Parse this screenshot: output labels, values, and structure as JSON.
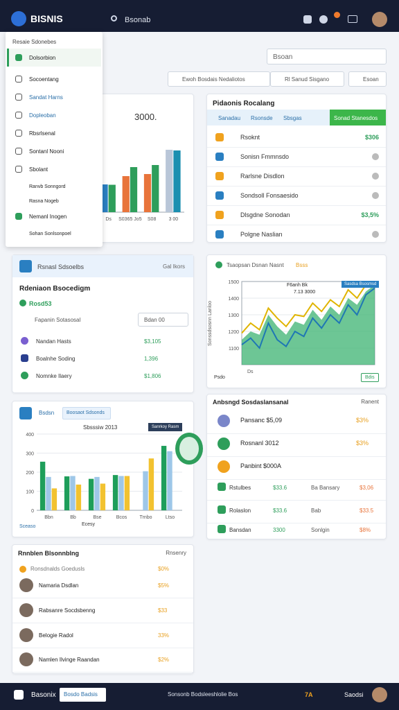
{
  "topbar": {
    "brand": "BISNIS",
    "search": "Bsonab"
  },
  "menu": {
    "heading": "Resaie Sdonebes",
    "items": [
      "Dolsorbion",
      "Socoentang",
      "Sandat Harns",
      "Dopleoban",
      "Rbsrlsenal",
      "Sontanl Nooni",
      "Sbolant",
      "Ranvb Sonngord",
      "Rasna Nogeb",
      "Nemanl Inogen",
      "Sohan Sonlsonpoel"
    ]
  },
  "toolbar": {
    "search": "Bsoan",
    "buttons": [
      "Ewoh Bosdais Nedaliotos",
      "Rl Sanud Sisgano",
      "Esoan"
    ]
  },
  "products": {
    "title": "Pidaonis Rocalang",
    "tabs": [
      "Sanadau",
      "Rsonsde",
      "Sbsgas",
      "Sonad Stanesdos"
    ],
    "rows": [
      {
        "label": "Rsoknt",
        "value": "$306"
      },
      {
        "label": "Sonisn Fmmnsdo"
      },
      {
        "label": "Rarlsne Disdlon"
      },
      {
        "label": "Sondsoll Fonsaesido"
      },
      {
        "label": "Dlsgdne Sonodan",
        "value": "$3,5%"
      },
      {
        "label": "Polgne Naslian"
      }
    ]
  },
  "sales": {
    "badge": "Rsnasl Sdsoelbs",
    "link": "Gal Ikors",
    "title": "Rdeniaon Bsocedigm",
    "stat": "Rosd53",
    "filter": "Fapanin Sotasosal",
    "select": "Bdan 00",
    "rows": [
      {
        "label": "Nandan Hasts",
        "value": "$3,105"
      },
      {
        "label": "Boalnhe Soding",
        "value": "1,396"
      },
      {
        "label": "Nomnke Ilaery",
        "value": "$1,806"
      }
    ]
  },
  "activity": {
    "title": "Anbsngd Sosdaslansanal",
    "link": "Ranent",
    "rows": [
      [
        "Pansanc $5,09",
        "$3%"
      ],
      [
        "Rosnanl 3012",
        "$3%"
      ],
      [
        "Panbint $000A"
      ],
      [
        "Rstulbes",
        "$33.6",
        "Ba Bansary",
        "$3,06"
      ],
      [
        "Rolaslon",
        "$33.6",
        "Bab",
        "$33.5"
      ],
      [
        "Bansdan",
        "3300",
        "Sonlgin",
        "$8%"
      ]
    ]
  },
  "team": {
    "title": "Rnnblen Blsonnblng",
    "link": "Rnsenry",
    "rows": [
      {
        "name": "Ronsdnalds Goedusls",
        "value": "$0%"
      },
      {
        "name": "Namaria Dsdlan",
        "value": "$5%"
      },
      {
        "name": "Rabsanre Socdsbenng",
        "value": "$33"
      },
      {
        "name": "Belogie Radol",
        "value": "33%"
      },
      {
        "name": "Namlen Ilvinge Raandan",
        "value": "$2%"
      }
    ]
  },
  "bottombar": {
    "brand": "Basonix",
    "button": "Bosdo Badsis",
    "center": "Sonsonb Bodsleeshlolie Bos",
    "tag": "7A",
    "user": "Saodsi"
  },
  "chart_data": [
    {
      "type": "bar",
      "label": "3000.",
      "categories": [
        "Ds",
        "S0365 Jo5",
        "S08",
        "3 00"
      ],
      "ylim": [
        0,
        3000
      ],
      "series": [
        {
          "colors": [
            "#2a7fc1",
            "#e8743b",
            "#e8743b",
            "#b9c6d8"
          ],
          "values": [
            800,
            1040,
            1100,
            1800
          ]
        },
        {
          "colors": [
            "#2e9e5b",
            "#2e9e5b",
            "#2e9e5b",
            "#1b8fb0"
          ],
          "values": [
            790,
            1300,
            1360,
            1780
          ]
        }
      ]
    },
    {
      "type": "area",
      "title": "Tsaopsan Dsnan Nasnt",
      "highlight": "Bsss",
      "ylabel": "Sonssdsosnn Lanloo",
      "xlabel": "Psdo",
      "tag": "Sasdsa Bsosmsd",
      "annotation": [
        "F6anh Bk",
        "7.13 3000"
      ],
      "button": "Bdis",
      "categories": [
        "Ds",
        null,
        null,
        null,
        null,
        null,
        null,
        null,
        null,
        null,
        null,
        null,
        null,
        null,
        null,
        null
      ],
      "ylim": [
        1000,
        1500
      ],
      "yticks": [
        1100,
        1200,
        1300,
        1400,
        1500
      ],
      "grid": true,
      "series": [
        {
          "color": "#3cb371",
          "fill": true,
          "values": [
            1150,
            1200,
            1180,
            1300,
            1230,
            1180,
            1260,
            1240,
            1330,
            1270,
            1350,
            1300,
            1400,
            1360,
            1440,
            1480
          ]
        },
        {
          "color": "#e0b400",
          "values": [
            1190,
            1250,
            1210,
            1340,
            1280,
            1230,
            1300,
            1290,
            1370,
            1320,
            1390,
            1350,
            1450,
            1400,
            1480,
            1490
          ]
        },
        {
          "color": "#1f77b4",
          "values": [
            1120,
            1160,
            1100,
            1250,
            1150,
            1110,
            1200,
            1170,
            1280,
            1220,
            1300,
            1250,
            1360,
            1300,
            1420,
            1460
          ]
        }
      ]
    },
    {
      "type": "bar",
      "header": "Bsdsn",
      "button": "Boosaot Sdsonds",
      "title": "Sbsssiw 2013",
      "annotation": "Sanrkoy Rasm",
      "caption": "Sceaso",
      "xlabel": "Ecesy",
      "categories": [
        "Bbn",
        "Bb",
        "Bse",
        "Bcos",
        "Trnbo",
        "Ltso"
      ],
      "ylim": [
        0,
        400
      ],
      "yticks": [
        0,
        100,
        200,
        300,
        400
      ],
      "grid": true,
      "series": [
        {
          "color": "#1e9e5a",
          "values": [
            255,
            178,
            165,
            185,
            null,
            338
          ]
        },
        {
          "color": "#9ec7e8",
          "values": [
            175,
            180,
            175,
            180,
            205,
            310
          ]
        },
        {
          "color": "#f2c230",
          "values": [
            115,
            135,
            140,
            180,
            272,
            null
          ]
        }
      ]
    }
  ]
}
